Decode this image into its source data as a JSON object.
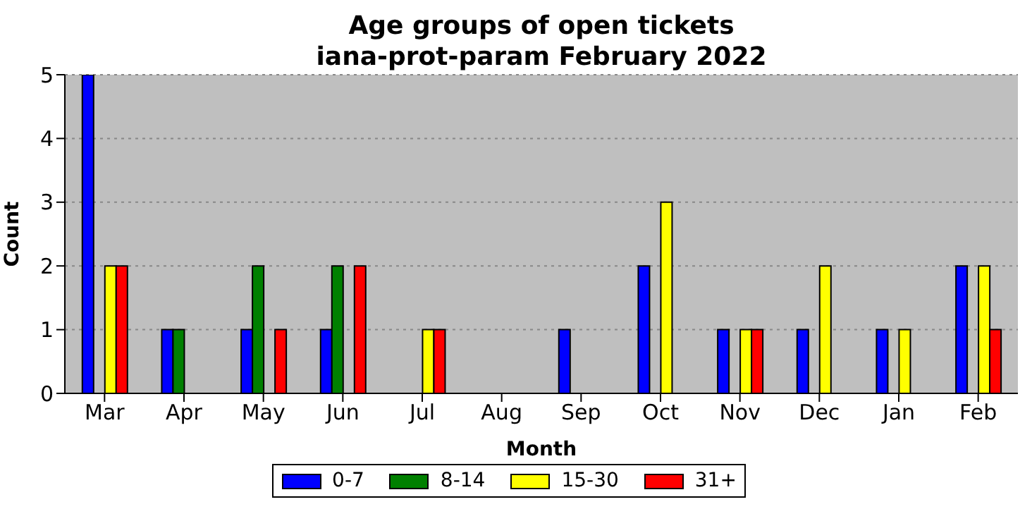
{
  "chart_data": {
    "type": "bar",
    "title": "Age groups of open tickets",
    "subtitle": "iana-prot-param February 2022",
    "xlabel": "Month",
    "ylabel": "Count",
    "categories": [
      "Mar",
      "Apr",
      "May",
      "Jun",
      "Jul",
      "Aug",
      "Sep",
      "Oct",
      "Nov",
      "Dec",
      "Jan",
      "Feb"
    ],
    "series": [
      {
        "name": "0-7",
        "color": "#0000ff",
        "values": [
          5,
          1,
          1,
          1,
          0,
          0,
          1,
          2,
          1,
          1,
          1,
          2
        ]
      },
      {
        "name": "8-14",
        "color": "#008000",
        "values": [
          0,
          1,
          2,
          2,
          0,
          0,
          0,
          0,
          0,
          0,
          0,
          0
        ]
      },
      {
        "name": "15-30",
        "color": "#ffff00",
        "values": [
          2,
          0,
          0,
          0,
          1,
          0,
          0,
          3,
          1,
          2,
          1,
          2
        ]
      },
      {
        "name": "31+",
        "color": "#ff0000",
        "values": [
          2,
          0,
          1,
          2,
          1,
          0,
          0,
          0,
          1,
          0,
          0,
          1
        ]
      }
    ],
    "ylim": [
      0,
      5
    ],
    "yticks": [
      0,
      1,
      2,
      3,
      4,
      5
    ],
    "grid": "y",
    "legend": "bottom"
  }
}
